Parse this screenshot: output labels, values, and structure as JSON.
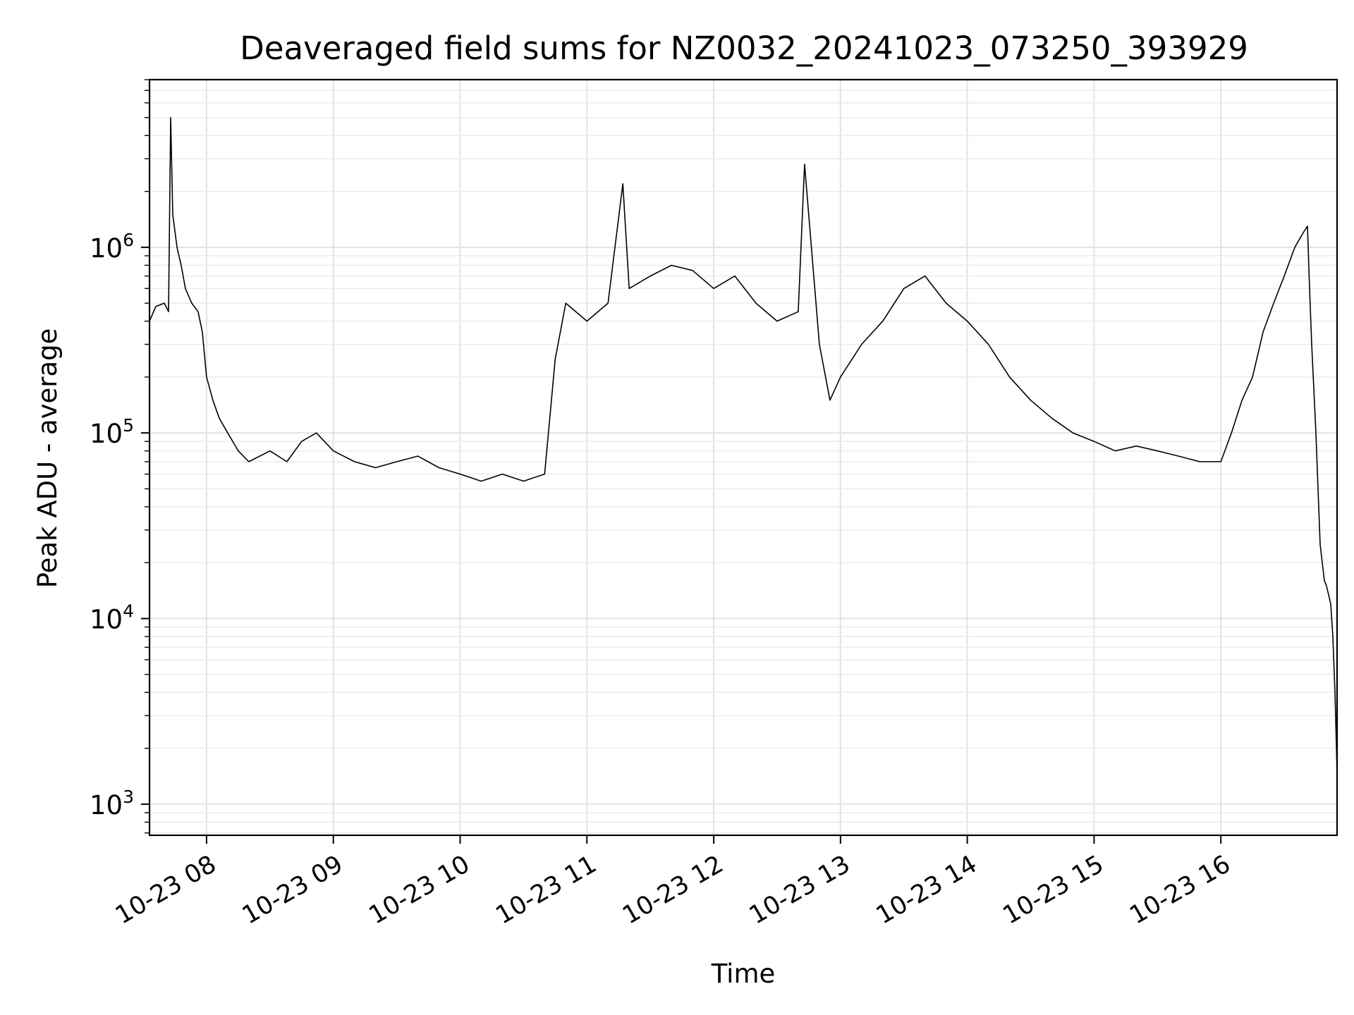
{
  "chart_data": {
    "type": "line",
    "title": "Deaveraged field sums for NZ0032_20241023_073250_393929",
    "xlabel": "Time",
    "ylabel": "Peak ADU - average",
    "xscale": "time",
    "yscale": "log",
    "xlim": [
      "2024-10-23 07:33",
      "2024-10-23 16:55"
    ],
    "ylim": [
      680,
      8000000
    ],
    "grid": true,
    "x_ticks": [
      {
        "t": "2024-10-23 08:00",
        "label": "10-23 08"
      },
      {
        "t": "2024-10-23 09:00",
        "label": "10-23 09"
      },
      {
        "t": "2024-10-23 10:00",
        "label": "10-23 10"
      },
      {
        "t": "2024-10-23 11:00",
        "label": "10-23 11"
      },
      {
        "t": "2024-10-23 12:00",
        "label": "10-23 12"
      },
      {
        "t": "2024-10-23 13:00",
        "label": "10-23 13"
      },
      {
        "t": "2024-10-23 14:00",
        "label": "10-23 14"
      },
      {
        "t": "2024-10-23 15:00",
        "label": "10-23 15"
      },
      {
        "t": "2024-10-23 16:00",
        "label": "10-23 16"
      }
    ],
    "y_ticks": [
      {
        "v": 1000,
        "base": "10",
        "exp": "3"
      },
      {
        "v": 10000,
        "base": "10",
        "exp": "4"
      },
      {
        "v": 100000,
        "base": "10",
        "exp": "5"
      },
      {
        "v": 1000000,
        "base": "10",
        "exp": "6"
      }
    ],
    "line_color": "#000000",
    "series": [
      {
        "x": [
          "2024-10-23 07:33",
          "2024-10-23 07:36",
          "2024-10-23 07:40",
          "2024-10-23 07:42",
          "2024-10-23 07:43",
          "2024-10-23 07:44",
          "2024-10-23 07:46",
          "2024-10-23 07:48",
          "2024-10-23 07:50",
          "2024-10-23 07:53",
          "2024-10-23 07:56",
          "2024-10-23 07:58",
          "2024-10-23 08:00",
          "2024-10-23 08:03",
          "2024-10-23 08:06",
          "2024-10-23 08:10",
          "2024-10-23 08:15",
          "2024-10-23 08:20",
          "2024-10-23 08:30",
          "2024-10-23 08:38",
          "2024-10-23 08:45",
          "2024-10-23 08:52",
          "2024-10-23 09:00",
          "2024-10-23 09:10",
          "2024-10-23 09:20",
          "2024-10-23 09:30",
          "2024-10-23 09:40",
          "2024-10-23 09:50",
          "2024-10-23 10:00",
          "2024-10-23 10:10",
          "2024-10-23 10:20",
          "2024-10-23 10:30",
          "2024-10-23 10:40",
          "2024-10-23 10:45",
          "2024-10-23 10:50",
          "2024-10-23 11:00",
          "2024-10-23 11:10",
          "2024-10-23 11:17",
          "2024-10-23 11:20",
          "2024-10-23 11:30",
          "2024-10-23 11:40",
          "2024-10-23 11:50",
          "2024-10-23 12:00",
          "2024-10-23 12:10",
          "2024-10-23 12:20",
          "2024-10-23 12:30",
          "2024-10-23 12:40",
          "2024-10-23 12:43",
          "2024-10-23 12:50",
          "2024-10-23 12:55",
          "2024-10-23 13:00",
          "2024-10-23 13:10",
          "2024-10-23 13:20",
          "2024-10-23 13:30",
          "2024-10-23 13:40",
          "2024-10-23 13:50",
          "2024-10-23 14:00",
          "2024-10-23 14:10",
          "2024-10-23 14:20",
          "2024-10-23 14:30",
          "2024-10-23 14:40",
          "2024-10-23 14:50",
          "2024-10-23 15:00",
          "2024-10-23 15:10",
          "2024-10-23 15:20",
          "2024-10-23 15:30",
          "2024-10-23 15:40",
          "2024-10-23 15:50",
          "2024-10-23 16:00",
          "2024-10-23 16:05",
          "2024-10-23 16:10",
          "2024-10-23 16:15",
          "2024-10-23 16:20",
          "2024-10-23 16:25",
          "2024-10-23 16:30",
          "2024-10-23 16:35",
          "2024-10-23 16:39",
          "2024-10-23 16:41",
          "2024-10-23 16:42",
          "2024-10-23 16:43",
          "2024-10-23 16:45",
          "2024-10-23 16:47",
          "2024-10-23 16:49",
          "2024-10-23 16:50",
          "2024-10-23 16:52",
          "2024-10-23 16:53",
          "2024-10-23 16:54",
          "2024-10-23 16:55"
        ],
        "y": [
          400000,
          480000,
          500000,
          450000,
          5000000,
          1500000,
          1000000,
          800000,
          600000,
          500000,
          450000,
          350000,
          200000,
          150000,
          120000,
          100000,
          80000,
          70000,
          80000,
          70000,
          90000,
          100000,
          80000,
          70000,
          65000,
          70000,
          75000,
          65000,
          60000,
          55000,
          60000,
          55000,
          60000,
          250000,
          500000,
          400000,
          500000,
          2200000,
          600000,
          700000,
          800000,
          750000,
          600000,
          700000,
          500000,
          400000,
          450000,
          2800000,
          300000,
          150000,
          200000,
          300000,
          400000,
          600000,
          700000,
          500000,
          400000,
          300000,
          200000,
          150000,
          120000,
          100000,
          90000,
          80000,
          85000,
          80000,
          75000,
          70000,
          70000,
          100000,
          150000,
          200000,
          350000,
          500000,
          700000,
          1000000,
          1200000,
          1300000,
          600000,
          300000,
          100000,
          25000,
          16000,
          15000,
          12000,
          8000,
          4000,
          1500
        ]
      }
    ]
  }
}
